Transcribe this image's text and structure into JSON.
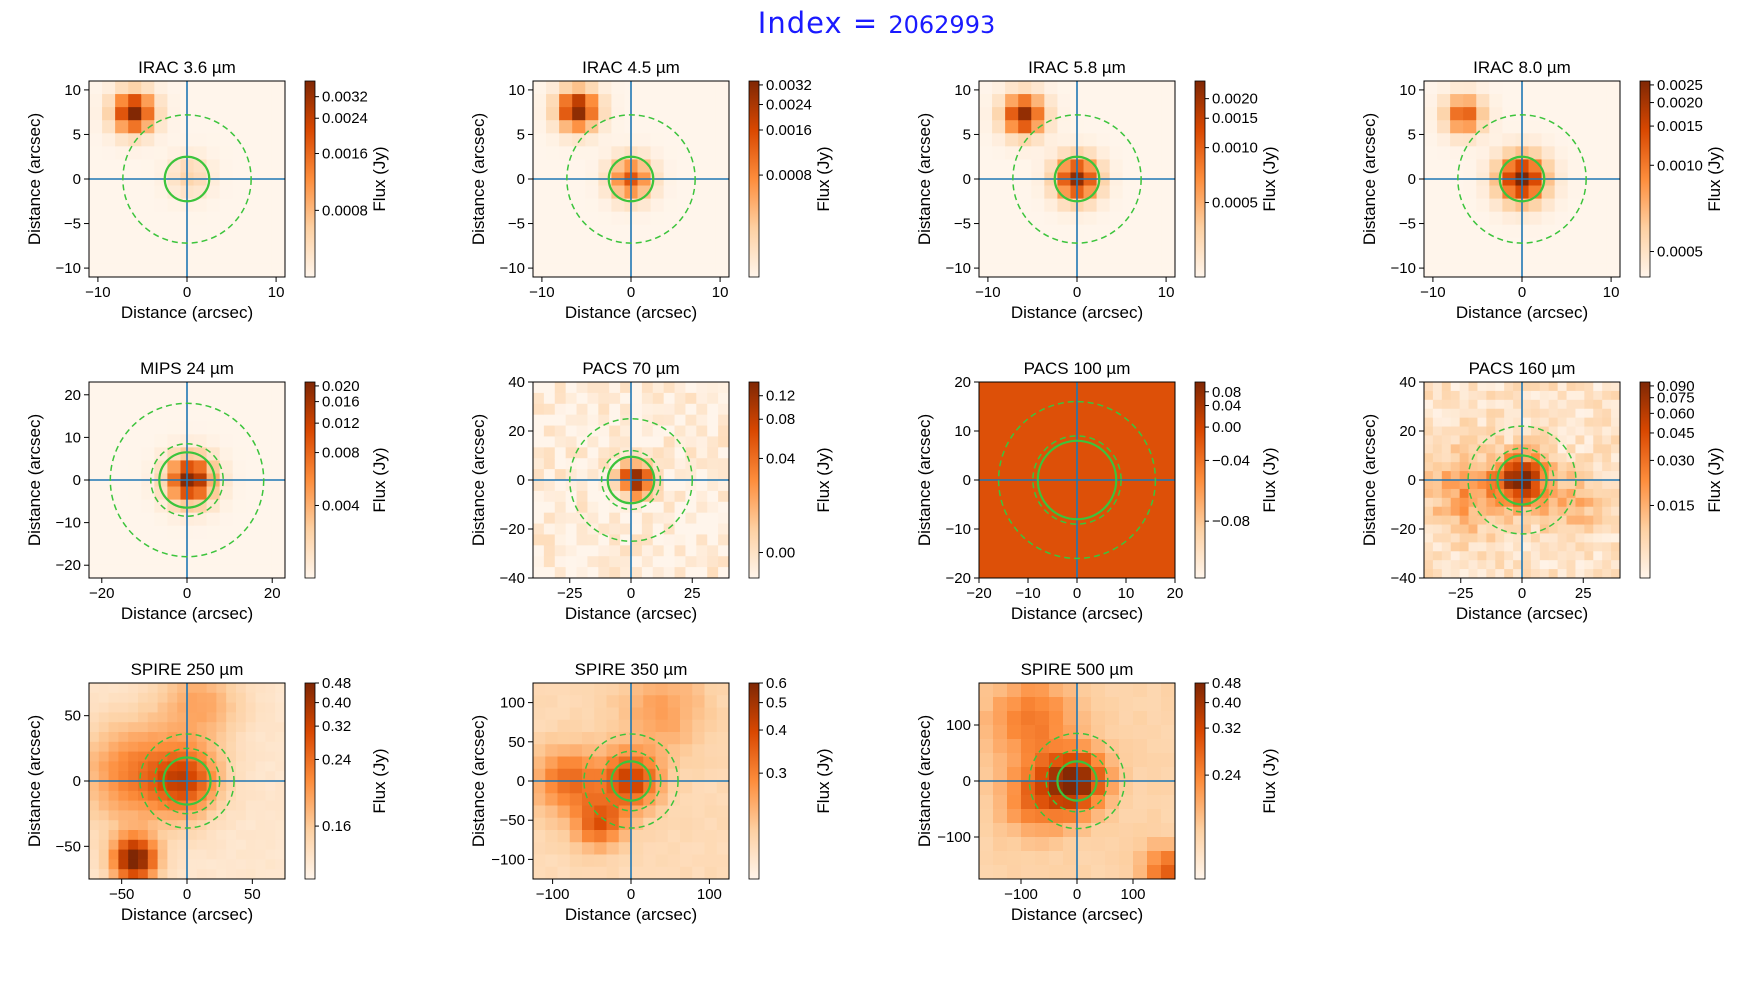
{
  "figure": {
    "title_lead": "Index = ",
    "title_number": "2062993",
    "x_axis_label": "Distance (arcsec)",
    "y_axis_label": "Distance (arcsec)",
    "colorbar_label": "Flux (Jy)"
  },
  "colors": {
    "map_low": "#fff5eb",
    "map_high": "#7f2704",
    "crosshair": "#1f77b4",
    "aperture": "#3cc43c",
    "figure_title": "#1a1aff"
  },
  "chart_data": [
    {
      "type": "heatmap",
      "title": "IRAC 3.6 µm",
      "band": "IRAC",
      "wavelength_label": "3.6",
      "xlim": [
        -11,
        11
      ],
      "ylim": [
        -11,
        11
      ],
      "xticks": [
        -10,
        0,
        10
      ],
      "xtick_labels": [
        "−10",
        "0",
        "10"
      ],
      "yticks": [
        -10,
        -5,
        0,
        5,
        10
      ],
      "ytick_labels": [
        "−10",
        "−5",
        "0",
        "5",
        "10"
      ],
      "grid_n": 15,
      "background": 0.0,
      "sources": [
        {
          "x": -6,
          "y": 7.5,
          "sigma": 1.6,
          "amp": 1.0
        },
        {
          "x": 0.3,
          "y": 0.3,
          "sigma": 1.6,
          "amp": 0.22
        }
      ],
      "noise": 0.0,
      "apertures": [
        {
          "r": 2.5,
          "dashed": false
        },
        {
          "r": 7.2,
          "dashed": true
        }
      ],
      "colorbar": {
        "ticks": [
          0.0032,
          0.0024,
          0.0016,
          0.0008
        ],
        "labels": [
          "0.0032",
          "0.0024",
          "0.0016",
          "0.0008"
        ],
        "positions": [
          0.08,
          0.19,
          0.37,
          0.66
        ]
      }
    },
    {
      "type": "heatmap",
      "title": "IRAC 4.5 µm",
      "band": "IRAC",
      "wavelength_label": "4.5",
      "xlim": [
        -11,
        11
      ],
      "ylim": [
        -11,
        11
      ],
      "xticks": [
        -10,
        0,
        10
      ],
      "xtick_labels": [
        "−10",
        "0",
        "10"
      ],
      "yticks": [
        -10,
        -5,
        0,
        5,
        10
      ],
      "ytick_labels": [
        "−10",
        "−5",
        "0",
        "5",
        "10"
      ],
      "grid_n": 15,
      "background": 0.0,
      "sources": [
        {
          "x": -6,
          "y": 7.8,
          "sigma": 1.6,
          "amp": 1.0
        },
        {
          "x": 0,
          "y": 0,
          "sigma": 1.6,
          "amp": 0.7
        }
      ],
      "noise": 0.0,
      "apertures": [
        {
          "r": 2.5,
          "dashed": false
        },
        {
          "r": 7.2,
          "dashed": true
        }
      ],
      "colorbar": {
        "ticks": [
          0.0032,
          0.0024,
          0.0016,
          0.0008
        ],
        "labels": [
          "0.0032",
          "0.0024",
          "0.0016",
          "0.0008"
        ],
        "positions": [
          0.02,
          0.12,
          0.25,
          0.48
        ]
      }
    },
    {
      "type": "heatmap",
      "title": "IRAC 5.8 µm",
      "band": "IRAC",
      "wavelength_label": "5.8",
      "xlim": [
        -11,
        11
      ],
      "ylim": [
        -11,
        11
      ],
      "xticks": [
        -10,
        0,
        10
      ],
      "xtick_labels": [
        "−10",
        "0",
        "10"
      ],
      "yticks": [
        -10,
        -5,
        0,
        5,
        10
      ],
      "ytick_labels": [
        "−10",
        "−5",
        "0",
        "5",
        "10"
      ],
      "grid_n": 15,
      "background": 0.0,
      "sources": [
        {
          "x": -6,
          "y": 7.2,
          "sigma": 1.6,
          "amp": 0.95
        },
        {
          "x": 0,
          "y": 0,
          "sigma": 1.7,
          "amp": 0.95
        }
      ],
      "noise": 0.0,
      "apertures": [
        {
          "r": 2.5,
          "dashed": false
        },
        {
          "r": 7.2,
          "dashed": true
        }
      ],
      "colorbar": {
        "ticks": [
          0.002,
          0.0015,
          0.001,
          0.0005
        ],
        "labels": [
          "0.0020",
          "0.0015",
          "0.0010",
          "0.0005"
        ],
        "positions": [
          0.09,
          0.19,
          0.34,
          0.62
        ]
      }
    },
    {
      "type": "heatmap",
      "title": "IRAC 8.0 µm",
      "band": "IRAC",
      "wavelength_label": "8.0",
      "xlim": [
        -11,
        11
      ],
      "ylim": [
        -11,
        11
      ],
      "xticks": [
        -10,
        0,
        10
      ],
      "xtick_labels": [
        "−10",
        "0",
        "10"
      ],
      "yticks": [
        -10,
        -5,
        0,
        5,
        10
      ],
      "ytick_labels": [
        "−10",
        "−5",
        "0",
        "5",
        "10"
      ],
      "grid_n": 15,
      "background": 0.0,
      "sources": [
        {
          "x": -6.5,
          "y": 7.2,
          "sigma": 1.5,
          "amp": 0.7
        },
        {
          "x": 0,
          "y": 0,
          "sigma": 1.9,
          "amp": 1.0
        }
      ],
      "noise": 0.0,
      "apertures": [
        {
          "r": 2.5,
          "dashed": false
        },
        {
          "r": 7.2,
          "dashed": true
        }
      ],
      "colorbar": {
        "ticks": [
          0.0025,
          0.002,
          0.0015,
          0.001,
          0.0005
        ],
        "labels": [
          "0.0025",
          "0.0020",
          "0.0015",
          "0.0010",
          "0.0005"
        ],
        "positions": [
          0.02,
          0.11,
          0.23,
          0.43,
          0.87
        ]
      }
    },
    {
      "type": "heatmap",
      "title": "MIPS 24 µm",
      "band": "MIPS",
      "wavelength_label": "24",
      "xlim": [
        -23,
        23
      ],
      "ylim": [
        -23,
        23
      ],
      "xticks": [
        -20,
        0,
        20
      ],
      "xtick_labels": [
        "−20",
        "0",
        "20"
      ],
      "yticks": [
        -20,
        -10,
        0,
        10,
        20
      ],
      "ytick_labels": [
        "−20",
        "−10",
        "0",
        "10",
        "20"
      ],
      "grid_n": 15,
      "background": 0.0,
      "sources": [
        {
          "x": 0.8,
          "y": 0,
          "sigma": 3.8,
          "amp": 1.0
        }
      ],
      "noise": 0.0,
      "apertures": [
        {
          "r": 6.5,
          "dashed": false
        },
        {
          "r": 8.5,
          "dashed": true
        },
        {
          "r": 18,
          "dashed": true
        }
      ],
      "colorbar": {
        "ticks": [
          0.02,
          0.016,
          0.012,
          0.008,
          0.004
        ],
        "labels": [
          "0.020",
          "0.016",
          "0.012",
          "0.008",
          "0.004"
        ],
        "positions": [
          0.02,
          0.1,
          0.21,
          0.36,
          0.63
        ]
      }
    },
    {
      "type": "heatmap",
      "title": "PACS 70 µm",
      "band": "PACS",
      "wavelength_label": "70",
      "xlim": [
        -40,
        40
      ],
      "ylim": [
        -40,
        40
      ],
      "xticks": [
        -25,
        0,
        25
      ],
      "xtick_labels": [
        "−25",
        "0",
        "25"
      ],
      "yticks": [
        -40,
        -20,
        0,
        20,
        40
      ],
      "ytick_labels": [
        "−40",
        "−20",
        "0",
        "20",
        "40"
      ],
      "grid_n": 18,
      "background": 0.05,
      "sources": [
        {
          "x": 2,
          "y": 0,
          "sigma": 4.5,
          "amp": 1.0
        }
      ],
      "noise": 0.22,
      "apertures": [
        {
          "r": 9.5,
          "dashed": false
        },
        {
          "r": 12,
          "dashed": true
        },
        {
          "r": 25,
          "dashed": true
        }
      ],
      "colorbar": {
        "ticks": [
          0.12,
          0.08,
          0.04,
          0.0
        ],
        "labels": [
          "0.12",
          "0.08",
          "0.04",
          "0.00"
        ],
        "positions": [
          0.07,
          0.19,
          0.39,
          0.87
        ]
      }
    },
    {
      "type": "heatmap",
      "title": "PACS 100 µm",
      "band": "PACS",
      "wavelength_label": "100",
      "xlim": [
        -20,
        20
      ],
      "ylim": [
        -20,
        20
      ],
      "xticks": [
        -20,
        -10,
        0,
        10,
        20
      ],
      "xtick_labels": [
        "−20",
        "−10",
        "0",
        "10",
        "20"
      ],
      "yticks": [
        -20,
        -10,
        0,
        10,
        20
      ],
      "ytick_labels": [
        "−20",
        "−10",
        "0",
        "10",
        "20"
      ],
      "grid_n": 1,
      "background": 0.72,
      "sources": [],
      "noise": 0.0,
      "apertures": [
        {
          "r": 8,
          "dashed": false
        },
        {
          "r": 9,
          "dashed": true
        },
        {
          "r": 16,
          "dashed": true
        }
      ],
      "colorbar": {
        "ticks": [
          0.08,
          0.04,
          0.0,
          -0.04,
          -0.08
        ],
        "labels": [
          "0.08",
          "0.04",
          "0.00",
          "−0.04",
          "−0.08"
        ],
        "positions": [
          0.05,
          0.12,
          0.23,
          0.4,
          0.71
        ]
      }
    },
    {
      "type": "heatmap",
      "title": "PACS 160 µm",
      "band": "PACS",
      "wavelength_label": "160",
      "xlim": [
        -40,
        40
      ],
      "ylim": [
        -40,
        40
      ],
      "xticks": [
        -25,
        0,
        25
      ],
      "xtick_labels": [
        "−25",
        "0",
        "25"
      ],
      "yticks": [
        -40,
        -20,
        0,
        20,
        40
      ],
      "ytick_labels": [
        "−40",
        "−20",
        "0",
        "20",
        "40"
      ],
      "grid_n": 22,
      "background": 0.12,
      "sources": [
        {
          "x": 0,
          "y": 0,
          "sigma": 7,
          "amp": 0.85
        },
        {
          "x": -22,
          "y": -5,
          "sigma": 11,
          "amp": 0.35
        },
        {
          "x": 20,
          "y": -10,
          "sigma": 9,
          "amp": 0.25
        }
      ],
      "noise": 0.22,
      "apertures": [
        {
          "r": 10,
          "dashed": false
        },
        {
          "r": 13,
          "dashed": true
        },
        {
          "r": 22,
          "dashed": true
        }
      ],
      "colorbar": {
        "ticks": [
          0.09,
          0.075,
          0.06,
          0.045,
          0.03,
          0.015
        ],
        "labels": [
          "0.090",
          "0.075",
          "0.060",
          "0.045",
          "0.030",
          "0.015"
        ],
        "positions": [
          0.02,
          0.08,
          0.16,
          0.26,
          0.4,
          0.63
        ]
      }
    },
    {
      "type": "heatmap",
      "title": "SPIRE 250 µm",
      "band": "SPIRE",
      "wavelength_label": "250",
      "xlim": [
        -75,
        75
      ],
      "ylim": [
        -75,
        75
      ],
      "xticks": [
        -50,
        0,
        50
      ],
      "xtick_labels": [
        "−50",
        "0",
        "50"
      ],
      "yticks": [
        -50,
        0,
        50
      ],
      "ytick_labels": [
        "−50",
        "0",
        "50"
      ],
      "grid_n": 20,
      "background": 0.1,
      "sources": [
        {
          "x": -40,
          "y": -60,
          "sigma": 12,
          "amp": 0.95
        },
        {
          "x": 0,
          "y": 0,
          "sigma": 18,
          "amp": 0.55
        },
        {
          "x": -40,
          "y": 5,
          "sigma": 28,
          "amp": 0.45
        },
        {
          "x": 10,
          "y": 60,
          "sigma": 22,
          "amp": 0.3
        }
      ],
      "noise": 0.03,
      "apertures": [
        {
          "r": 18,
          "dashed": false
        },
        {
          "r": 25,
          "dashed": true
        },
        {
          "r": 36,
          "dashed": true
        }
      ],
      "colorbar": {
        "ticks": [
          0.48,
          0.4,
          0.32,
          0.24,
          0.16
        ],
        "labels": [
          "0.48",
          "0.40",
          "0.32",
          "0.24",
          "0.16"
        ],
        "positions": [
          0.0,
          0.1,
          0.22,
          0.39,
          0.73
        ]
      }
    },
    {
      "type": "heatmap",
      "title": "SPIRE 350 µm",
      "band": "SPIRE",
      "wavelength_label": "350",
      "xlim": [
        -125,
        125
      ],
      "ylim": [
        -125,
        125
      ],
      "xticks": [
        -100,
        0,
        100
      ],
      "xtick_labels": [
        "−100",
        "0",
        "100"
      ],
      "yticks": [
        -100,
        -50,
        0,
        50,
        100
      ],
      "ytick_labels": [
        "−100",
        "−50",
        "0",
        "50",
        "100"
      ],
      "grid_n": 16,
      "background": 0.18,
      "sources": [
        {
          "x": 0,
          "y": 0,
          "sigma": 26,
          "amp": 0.6
        },
        {
          "x": -40,
          "y": -55,
          "sigma": 22,
          "amp": 0.5
        },
        {
          "x": -80,
          "y": 0,
          "sigma": 30,
          "amp": 0.45
        },
        {
          "x": 40,
          "y": 90,
          "sigma": 40,
          "amp": 0.25
        }
      ],
      "noise": 0.04,
      "apertures": [
        {
          "r": 25,
          "dashed": false
        },
        {
          "r": 38,
          "dashed": true
        },
        {
          "r": 60,
          "dashed": true
        }
      ],
      "colorbar": {
        "ticks": [
          0.6,
          0.5,
          0.4,
          0.3
        ],
        "labels": [
          "0.6",
          "0.5",
          "0.4",
          "0.3"
        ],
        "positions": [
          0.0,
          0.1,
          0.24,
          0.46
        ]
      }
    },
    {
      "type": "heatmap",
      "title": "SPIRE 500 µm",
      "band": "SPIRE",
      "wavelength_label": "500",
      "xlim": [
        -175,
        175
      ],
      "ylim": [
        -175,
        175
      ],
      "xticks": [
        -100,
        0,
        100
      ],
      "xtick_labels": [
        "−100",
        "0",
        "100"
      ],
      "yticks": [
        -100,
        0,
        100
      ],
      "ytick_labels": [
        "−100",
        "0",
        "100"
      ],
      "grid_n": 14,
      "background": 0.22,
      "sources": [
        {
          "x": 0,
          "y": 0,
          "sigma": 38,
          "amp": 0.7
        },
        {
          "x": -70,
          "y": -30,
          "sigma": 45,
          "amp": 0.4
        },
        {
          "x": -80,
          "y": 110,
          "sigma": 55,
          "amp": 0.35
        },
        {
          "x": 160,
          "y": -160,
          "sigma": 30,
          "amp": 0.45
        }
      ],
      "noise": 0.04,
      "apertures": [
        {
          "r": 35,
          "dashed": false
        },
        {
          "r": 55,
          "dashed": true
        },
        {
          "r": 85,
          "dashed": true
        }
      ],
      "colorbar": {
        "ticks": [
          0.48,
          0.4,
          0.32,
          0.24
        ],
        "labels": [
          "0.48",
          "0.40",
          "0.32",
          "0.24"
        ],
        "positions": [
          0.0,
          0.1,
          0.23,
          0.47
        ]
      }
    }
  ]
}
